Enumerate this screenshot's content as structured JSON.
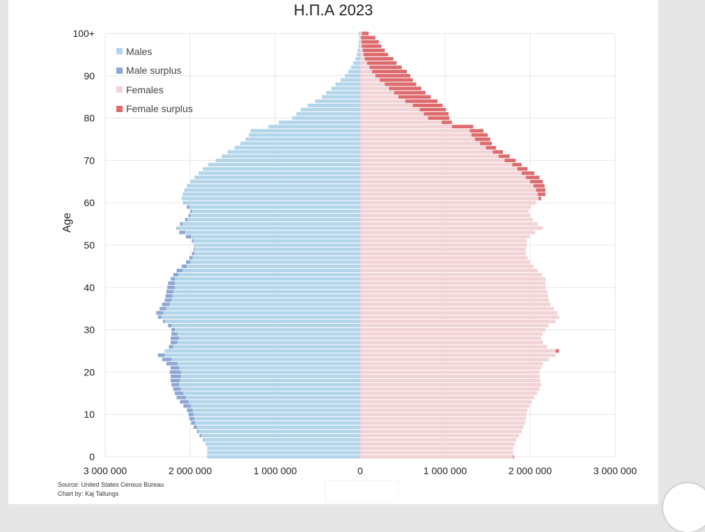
{
  "colors": {
    "males": "#b3d5ea",
    "male_surplus": "#8ea6d4",
    "females": "#f2d3d6",
    "female_surplus": "#dd6b6e",
    "grid": "#e5e5e5"
  },
  "footer": {
    "source": "Source: United States Census Bureau",
    "credit": "Chart by: Kaj Tallungs"
  },
  "chart_data": {
    "type": "bar",
    "orientation": "horizontal",
    "title": "Н.П.А 2023",
    "ylabel": "Age",
    "xlabel": "",
    "xlim": [
      -3000000,
      3000000
    ],
    "ylim": [
      0,
      100
    ],
    "grid": true,
    "legend_position": "top-left",
    "x_ticks": [
      -3000000,
      -2000000,
      -1000000,
      0,
      1000000,
      2000000,
      3000000
    ],
    "x_tick_labels": [
      "3 000 000",
      "2 000 000",
      "1 000 000",
      "0",
      "1 000 000",
      "2 000 000",
      "3 000 000"
    ],
    "y_ticks": [
      0,
      10,
      20,
      30,
      40,
      50,
      60,
      70,
      80,
      90,
      100
    ],
    "y_tick_labels": [
      "0",
      "10",
      "20",
      "30",
      "40",
      "50",
      "60",
      "70",
      "80",
      "90",
      "100+"
    ],
    "legend": [
      "Males",
      "Male surplus",
      "Females",
      "Female surplus"
    ],
    "ages": [
      0,
      1,
      2,
      3,
      4,
      5,
      6,
      7,
      8,
      9,
      10,
      11,
      12,
      13,
      14,
      15,
      16,
      17,
      18,
      19,
      20,
      21,
      22,
      23,
      24,
      25,
      26,
      27,
      28,
      29,
      30,
      31,
      32,
      33,
      34,
      35,
      36,
      37,
      38,
      39,
      40,
      41,
      42,
      43,
      44,
      45,
      46,
      47,
      48,
      49,
      50,
      51,
      52,
      53,
      54,
      55,
      56,
      57,
      58,
      59,
      60,
      61,
      62,
      63,
      64,
      65,
      66,
      67,
      68,
      69,
      70,
      71,
      72,
      73,
      74,
      75,
      76,
      77,
      78,
      79,
      80,
      81,
      82,
      83,
      84,
      85,
      86,
      87,
      88,
      89,
      90,
      91,
      92,
      93,
      94,
      95,
      96,
      97,
      98,
      99,
      100
    ],
    "series": [
      {
        "name": "Males",
        "values": [
          1800000,
          1800000,
          1800000,
          1820000,
          1850000,
          1890000,
          1920000,
          1960000,
          1990000,
          2010000,
          2020000,
          2040000,
          2080000,
          2120000,
          2160000,
          2180000,
          2200000,
          2220000,
          2230000,
          2230000,
          2240000,
          2230000,
          2280000,
          2330000,
          2380000,
          2300000,
          2250000,
          2230000,
          2230000,
          2220000,
          2220000,
          2260000,
          2320000,
          2380000,
          2400000,
          2360000,
          2330000,
          2300000,
          2290000,
          2280000,
          2270000,
          2260000,
          2230000,
          2200000,
          2160000,
          2100000,
          2050000,
          2010000,
          1980000,
          1960000,
          1960000,
          1980000,
          2050000,
          2130000,
          2160000,
          2120000,
          2060000,
          2020000,
          2000000,
          2040000,
          2080000,
          2100000,
          2090000,
          2070000,
          2040000,
          2000000,
          1950000,
          1900000,
          1850000,
          1790000,
          1700000,
          1630000,
          1560000,
          1480000,
          1410000,
          1350000,
          1310000,
          1290000,
          1080000,
          960000,
          800000,
          750000,
          700000,
          620000,
          530000,
          450000,
          400000,
          340000,
          290000,
          230000,
          180000,
          140000,
          110000,
          80000,
          55000,
          40000,
          30000,
          20000,
          15000,
          10000,
          20000
        ]
      },
      {
        "name": "Females",
        "values": [
          1810000,
          1800000,
          1800000,
          1820000,
          1840000,
          1870000,
          1900000,
          1920000,
          1940000,
          1950000,
          1960000,
          1970000,
          1990000,
          2020000,
          2050000,
          2080000,
          2110000,
          2130000,
          2120000,
          2110000,
          2110000,
          2130000,
          2150000,
          2220000,
          2300000,
          2340000,
          2200000,
          2150000,
          2130000,
          2150000,
          2180000,
          2220000,
          2300000,
          2340000,
          2320000,
          2280000,
          2240000,
          2220000,
          2210000,
          2200000,
          2180000,
          2180000,
          2180000,
          2140000,
          2090000,
          2040000,
          2000000,
          1970000,
          1950000,
          1950000,
          1960000,
          1960000,
          1990000,
          2060000,
          2150000,
          2090000,
          2030000,
          2000000,
          1980000,
          2010000,
          2070000,
          2130000,
          2180000,
          2180000,
          2170000,
          2150000,
          2110000,
          2050000,
          1970000,
          1900000,
          1830000,
          1760000,
          1680000,
          1600000,
          1550000,
          1530000,
          1500000,
          1450000,
          1330000,
          1080000,
          1050000,
          1040000,
          1010000,
          970000,
          910000,
          830000,
          770000,
          720000,
          660000,
          620000,
          590000,
          550000,
          490000,
          430000,
          390000,
          330000,
          290000,
          250000,
          220000,
          180000,
          100000
        ]
      }
    ]
  }
}
